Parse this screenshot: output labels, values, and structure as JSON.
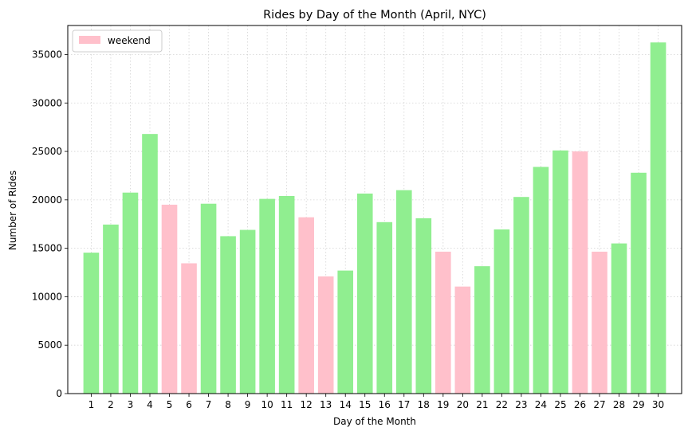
{
  "chart_data": {
    "type": "bar",
    "title": "Rides by Day of the Month (April, NYC)",
    "xlabel": "Day of the Month",
    "ylabel": "Number of Rides",
    "categories": [
      "1",
      "2",
      "3",
      "4",
      "5",
      "6",
      "7",
      "8",
      "9",
      "10",
      "11",
      "12",
      "13",
      "14",
      "15",
      "16",
      "17",
      "18",
      "19",
      "20",
      "21",
      "22",
      "23",
      "24",
      "25",
      "26",
      "27",
      "28",
      "29",
      "30"
    ],
    "values": [
      14550,
      17450,
      20750,
      26800,
      19500,
      13450,
      19600,
      16250,
      16900,
      20100,
      20400,
      18200,
      12100,
      12700,
      20650,
      17700,
      21000,
      18100,
      14650,
      11050,
      13150,
      16950,
      20300,
      23400,
      25100,
      25000,
      14650,
      15500,
      22800,
      36250
    ],
    "weekend": [
      false,
      false,
      false,
      false,
      true,
      true,
      false,
      false,
      false,
      false,
      false,
      true,
      true,
      false,
      false,
      false,
      false,
      false,
      true,
      true,
      false,
      false,
      false,
      false,
      false,
      true,
      true,
      false,
      false,
      false
    ],
    "colors": {
      "weekday": "#90ee90",
      "weekend": "#ffc0cb",
      "grid": "#d3d3d3"
    },
    "ylim": [
      0,
      38000
    ],
    "yticks": [
      0,
      5000,
      10000,
      15000,
      20000,
      25000,
      30000,
      35000
    ],
    "grid": true,
    "legend": {
      "position": "top-left",
      "entries": [
        {
          "label": "weekend",
          "color": "#ffc0cb"
        }
      ]
    }
  }
}
